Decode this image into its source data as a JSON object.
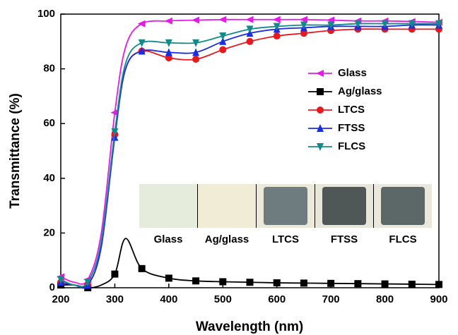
{
  "chart_data": {
    "type": "line",
    "x_label": "Wavelength (nm)",
    "y_label": "Transmittance (%)",
    "x": [
      200,
      225,
      250,
      275,
      300,
      320,
      350,
      400,
      450,
      500,
      550,
      600,
      650,
      700,
      750,
      800,
      850,
      900
    ],
    "series": [
      {
        "name": "Glass",
        "color": "#e619e6",
        "marker": "triangle-left",
        "values": [
          4,
          2,
          3,
          20,
          64,
          88,
          96.5,
          97.5,
          97.8,
          98,
          98,
          98,
          98,
          97.8,
          97.5,
          97.5,
          97.3,
          97
        ]
      },
      {
        "name": "Ag/glass",
        "color": "#000000",
        "marker": "square",
        "values": [
          1,
          1,
          0,
          1,
          5,
          18,
          7,
          3.5,
          2.5,
          2.2,
          2,
          1.8,
          1.7,
          1.6,
          1.5,
          1.4,
          1.3,
          1.2
        ]
      },
      {
        "name": "LTCS",
        "color": "#e8191e",
        "marker": "circle",
        "values": [
          2,
          1,
          1,
          15,
          56,
          80,
          86.5,
          84,
          83.5,
          87,
          90,
          92,
          93,
          94,
          94.5,
          94.5,
          94.5,
          94.5
        ]
      },
      {
        "name": "FTSS",
        "color": "#1a2de0",
        "marker": "triangle-up",
        "values": [
          2,
          1,
          1,
          15,
          55,
          80,
          86.5,
          86,
          86,
          90,
          93,
          94.5,
          95,
          95.5,
          95.5,
          95.5,
          96,
          96
        ]
      },
      {
        "name": "FLCS",
        "color": "#138a8a",
        "marker": "triangle-down",
        "values": [
          3,
          1,
          2,
          17,
          57,
          82,
          89.5,
          89.5,
          89.5,
          92,
          94.5,
          95.5,
          96,
          96,
          96.5,
          96.5,
          96.5,
          96.5
        ]
      }
    ],
    "xlim": [
      200,
      900
    ],
    "xticks": [
      200,
      300,
      400,
      500,
      600,
      700,
      800,
      900
    ],
    "ylim": [
      0,
      100
    ],
    "yticks": [
      0,
      20,
      40,
      60,
      80,
      100
    ],
    "legend": "upper right",
    "inset_labels": [
      "Glass",
      "Ag/glass",
      "LTCS",
      "FTSS",
      "FLCS"
    ]
  }
}
